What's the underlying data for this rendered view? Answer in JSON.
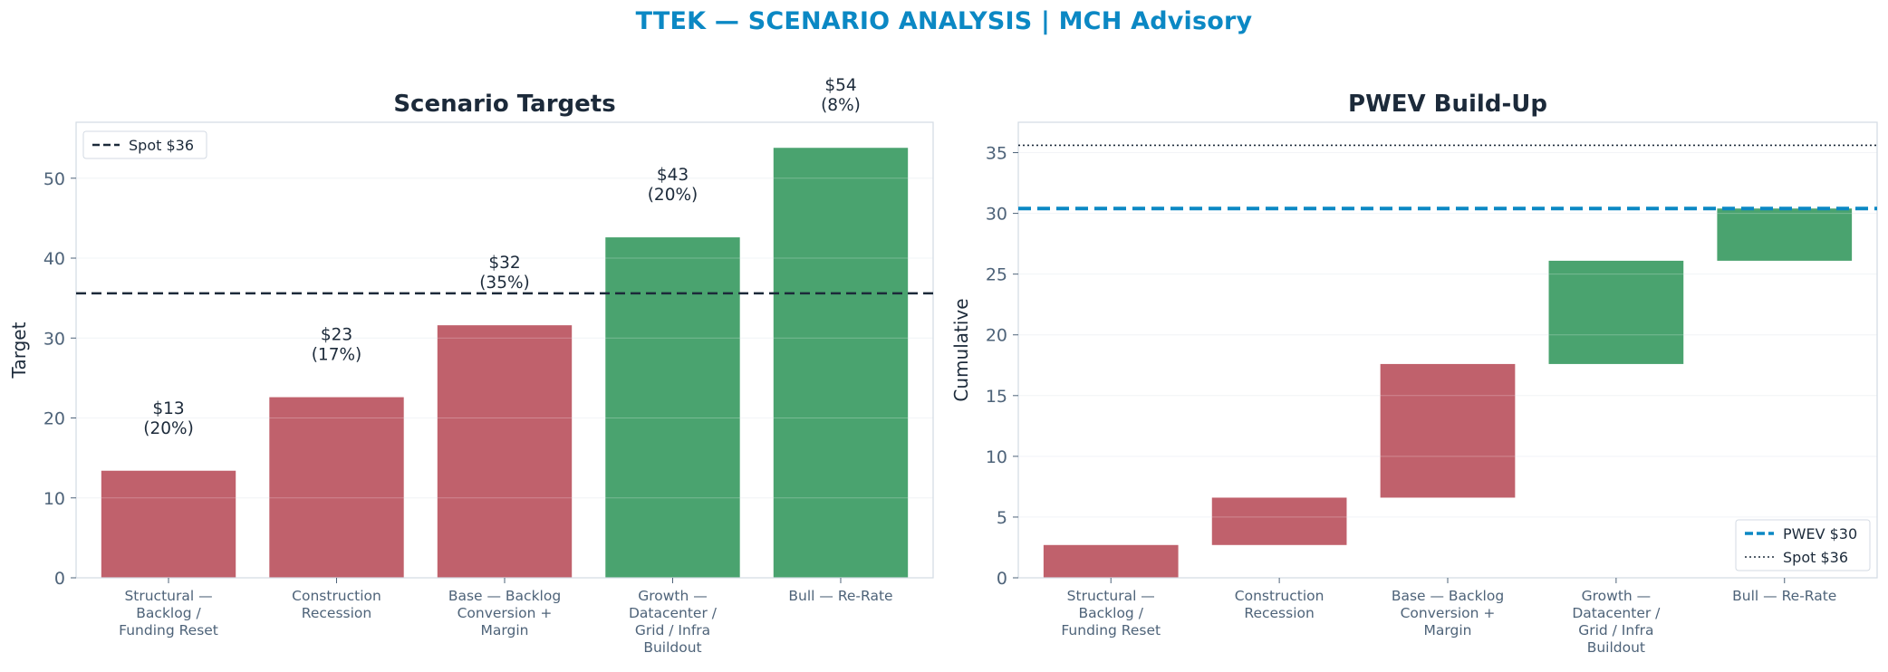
{
  "suptitle": "TTEK — SCENARIO ANALYSIS | MCH Advisory",
  "colors": {
    "title": "#0b88c4",
    "text_dark": "#1c2a3a",
    "tick": "#4e6379",
    "downside": "#c0616c",
    "upside": "#4aa36f",
    "pwev_line": "#0b88c4",
    "spot_line": "#1c2a3a"
  },
  "chart_data": [
    {
      "type": "bar",
      "title": "Scenario Targets",
      "xlabel": "",
      "ylabel": "Target",
      "ylim": [
        0,
        57
      ],
      "yticks": [
        0,
        10,
        20,
        30,
        40,
        50
      ],
      "grid": true,
      "categories": [
        [
          "Structural —",
          "Backlog /",
          "Funding Reset"
        ],
        [
          "Construction",
          "Recession"
        ],
        [
          "Base — Backlog",
          "Conversion +",
          "Margin"
        ],
        [
          "Growth —",
          "Datacenter /",
          "Grid / Infra",
          "Buildout"
        ],
        [
          "Bull — Re-Rate"
        ]
      ],
      "values": [
        13.4,
        22.6,
        31.6,
        42.6,
        53.8
      ],
      "bar_colors": [
        "downside",
        "downside",
        "downside",
        "upside",
        "upside"
      ],
      "data_labels": [
        [
          "$13",
          "(20%)"
        ],
        [
          "$23",
          "(17%)"
        ],
        [
          "$32",
          "(35%)"
        ],
        [
          "$43",
          "(20%)"
        ],
        [
          "$54",
          "(8%)"
        ]
      ],
      "hline": {
        "value": 35.6,
        "label": "Spot $36",
        "style": "dashed"
      },
      "legend": {
        "position": "top-left",
        "entries": [
          "Spot $36"
        ]
      }
    },
    {
      "type": "waterfall",
      "title": "PWEV Build-Up",
      "xlabel": "",
      "ylabel": "Cumulative",
      "ylim": [
        0,
        37.5
      ],
      "yticks": [
        0,
        5,
        10,
        15,
        20,
        25,
        30,
        35
      ],
      "grid": true,
      "categories": [
        [
          "Structural —",
          "Backlog /",
          "Funding Reset"
        ],
        [
          "Construction",
          "Recession"
        ],
        [
          "Base — Backlog",
          "Conversion +",
          "Margin"
        ],
        [
          "Growth —",
          "Datacenter /",
          "Grid / Infra",
          "Buildout"
        ],
        [
          "Bull — Re-Rate"
        ]
      ],
      "segments": [
        {
          "start": 0,
          "end": 2.7
        },
        {
          "start": 2.7,
          "end": 6.6
        },
        {
          "start": 6.6,
          "end": 17.6
        },
        {
          "start": 17.6,
          "end": 26.1
        },
        {
          "start": 26.1,
          "end": 30.4
        }
      ],
      "bar_colors": [
        "downside",
        "downside",
        "downside",
        "upside",
        "upside"
      ],
      "hlines": [
        {
          "value": 30.4,
          "label": "PWEV $30",
          "style": "dashed-thick"
        },
        {
          "value": 35.6,
          "label": "Spot $36",
          "style": "dotted"
        }
      ],
      "legend": {
        "position": "bottom-right",
        "entries": [
          "PWEV $30",
          "Spot $36"
        ]
      }
    }
  ]
}
